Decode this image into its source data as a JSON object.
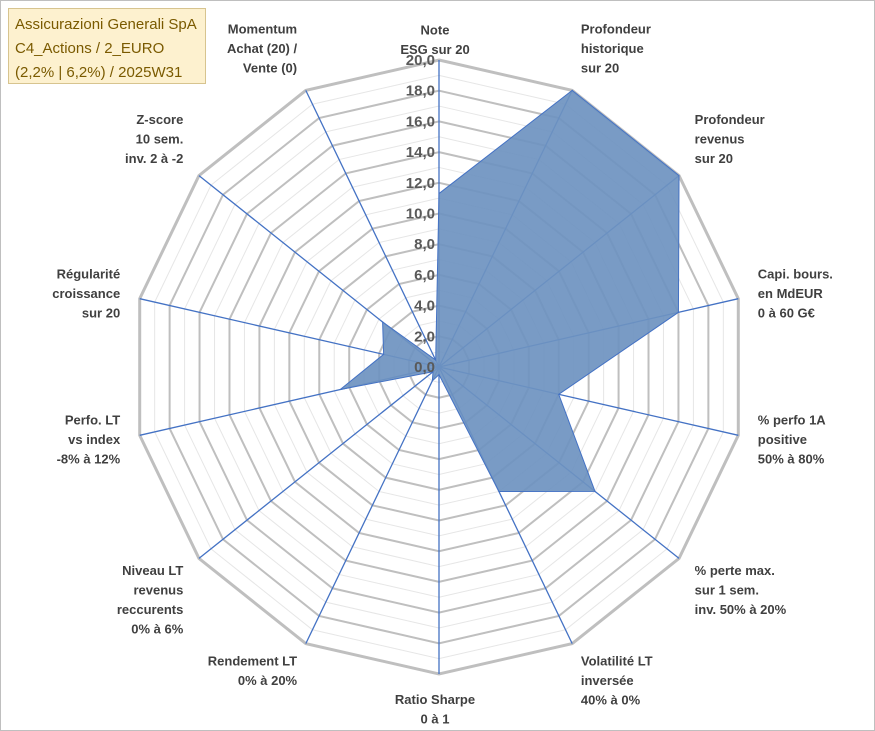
{
  "title_box": {
    "line1": "Assicurazioni Generali SpA",
    "line2": "C4_Actions / 2_EURO",
    "line3": "(2,2% | 6,2%) / 2025W31"
  },
  "colors": {
    "fill": "#6e93c0",
    "stroke": "#4472c4",
    "grid": "#bfbfbf",
    "title_bg": "#fdf1cf",
    "title_text": "#7a5a00"
  },
  "chart_data": {
    "type": "radar",
    "rmin": 0,
    "rmax": 20,
    "ticks": [
      "0,0",
      "2,0",
      "4,0",
      "6,0",
      "8,0",
      "10,0",
      "12,0",
      "14,0",
      "16,0",
      "18,0",
      "20,0"
    ],
    "axes": [
      {
        "label": [
          "Note",
          "ESG sur 20"
        ],
        "value": 11.3
      },
      {
        "label": [
          "Profondeur",
          "historique",
          "sur 20"
        ],
        "value": 20.0
      },
      {
        "label": [
          "Profondeur",
          "revenus",
          "sur 20"
        ],
        "value": 20.0
      },
      {
        "label": [
          "Capi. bours.",
          "en MdEUR",
          "0 à 60 G€"
        ],
        "value": 16.0
      },
      {
        "label": [
          "% perfo 1A",
          "positive",
          "50% à 80%"
        ],
        "value": 8.0
      },
      {
        "label": [
          "% perte max.",
          "sur 1 sem.",
          "inv. 50% à 20%"
        ],
        "value": 13.0
      },
      {
        "label": [
          "Volatilité LT",
          "inversée",
          "40% à 0%"
        ],
        "value": 9.0
      },
      {
        "label": [
          "Ratio Sharpe",
          "0 à 1"
        ],
        "value": 0.5
      },
      {
        "label": [
          "Rendement LT",
          "0% à 20%"
        ],
        "value": 1.0
      },
      {
        "label": [
          "Niveau LT",
          "revenus",
          "reccurents",
          "0% à 6%"
        ],
        "value": 0.5
      },
      {
        "label": [
          "Perfo. LT",
          "vs index",
          "-8% à 12%"
        ],
        "value": 6.6
      },
      {
        "label": [
          "Régularité",
          "croissance",
          "sur 20"
        ],
        "value": 3.7
      },
      {
        "label": [
          "Z-score",
          "10 sem.",
          "inv. 2 à -2"
        ],
        "value": 4.7
      },
      {
        "label": [
          "Momentum",
          "Achat (20) /",
          "Vente (0)"
        ],
        "value": 0.5
      }
    ]
  }
}
